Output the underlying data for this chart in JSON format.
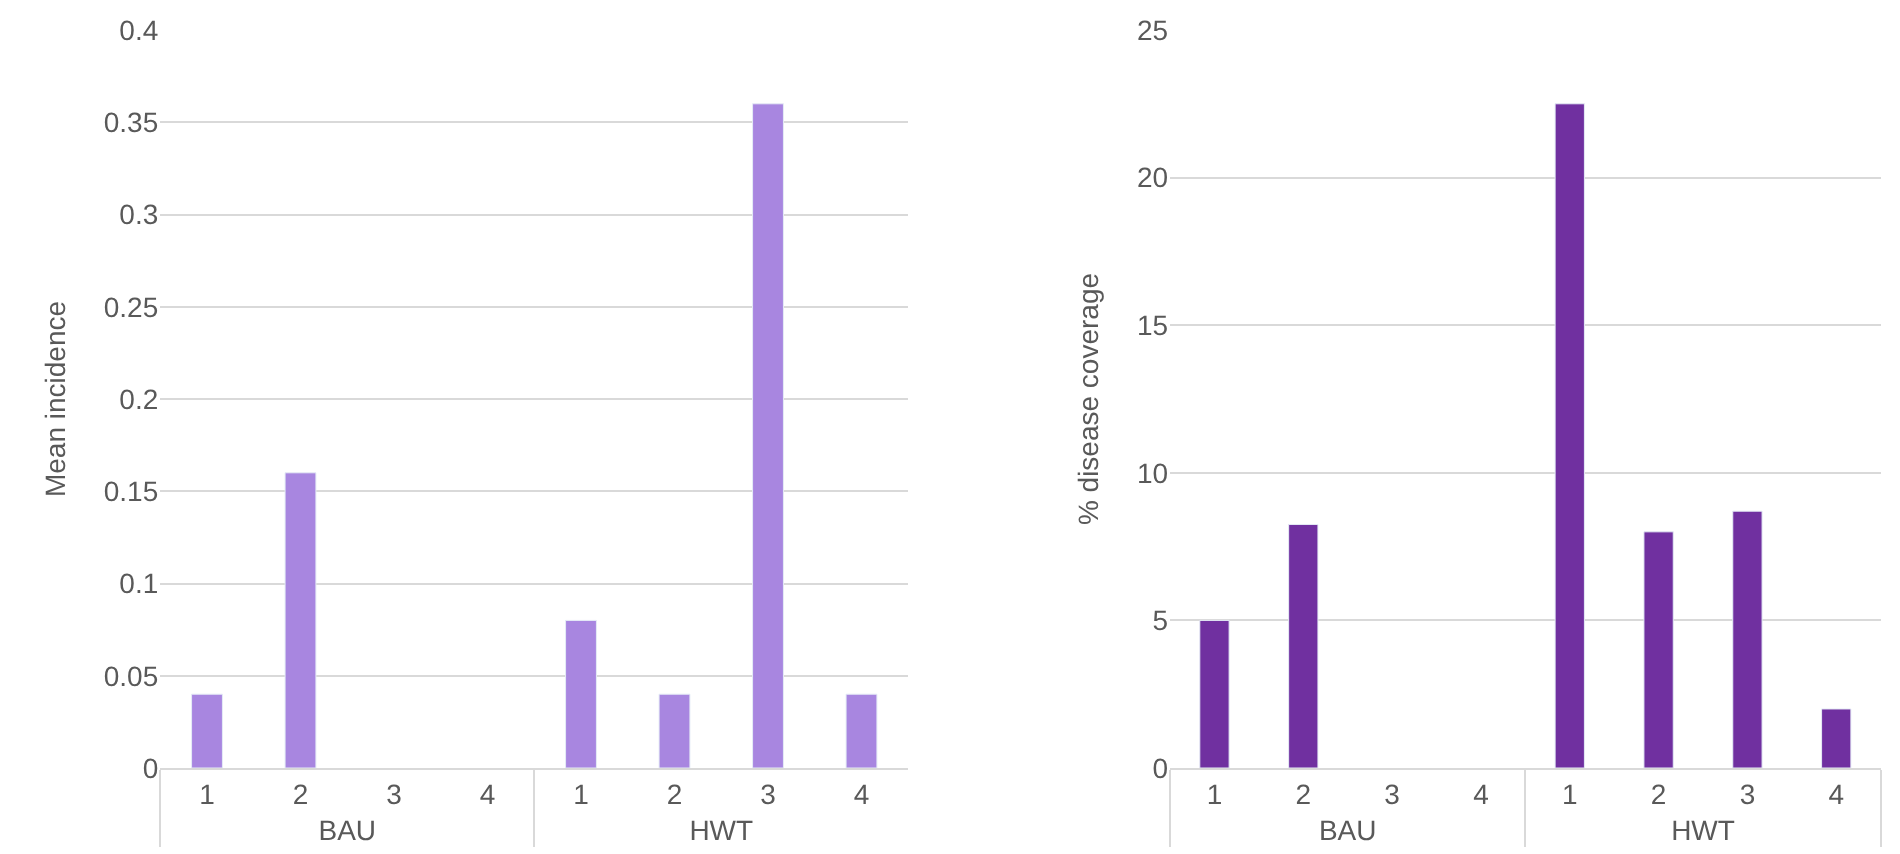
{
  "chart_data": [
    {
      "type": "bar",
      "ylabel": "Mean incidence",
      "categories": [
        "1",
        "2",
        "3",
        "4",
        "1",
        "2",
        "3",
        "4"
      ],
      "annotations": [
        "BAU",
        "HWT"
      ],
      "series": [
        {
          "color": "#a886e0",
          "values": [
            0.04,
            0.16,
            null,
            null,
            0.08,
            0.04,
            0.36,
            0.04
          ]
        }
      ],
      "ylim": [
        0,
        0.4
      ],
      "yticks": [
        0,
        0.05,
        0.1,
        0.15,
        0.2,
        0.25,
        0.3,
        0.35,
        0.4
      ],
      "grid": "y"
    },
    {
      "type": "bar",
      "ylabel": "% disease coverage",
      "categories": [
        "1",
        "2",
        "3",
        "4",
        "1",
        "2",
        "3",
        "4"
      ],
      "annotations": [
        "BAU",
        "HWT"
      ],
      "series": [
        {
          "color": "#7030a0",
          "values": [
            5,
            8.25,
            null,
            null,
            22.5,
            8,
            8.7,
            2
          ]
        }
      ],
      "ylim": [
        0,
        25
      ],
      "yticks": [
        0,
        5,
        10,
        15,
        20,
        25
      ],
      "grid": "y"
    }
  ]
}
